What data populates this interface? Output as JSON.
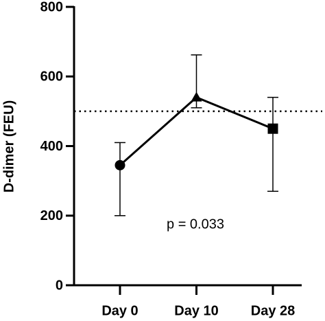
{
  "chart_data": {
    "type": "line",
    "ylabel": "D-dimer (FEU)",
    "categories": [
      "Day 0",
      "Day 10",
      "Day 28"
    ],
    "values": [
      345,
      540,
      450
    ],
    "errors_low": [
      145,
      30,
      180
    ],
    "errors_high": [
      65,
      122,
      90
    ],
    "markers": [
      "circle",
      "triangle",
      "square"
    ],
    "color": "#000000",
    "reference_line": 500,
    "annotation": "p = 0.033",
    "ylim": [
      0,
      800
    ],
    "yticks": [
      0,
      200,
      400,
      600,
      800
    ]
  }
}
